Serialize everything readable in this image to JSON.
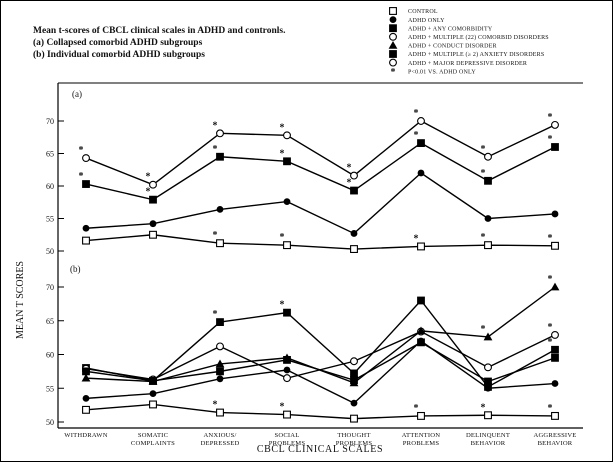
{
  "title": {
    "line1": "Mean t-scores of CBCL clinical scales in ADHD and contronls.",
    "line2": "(a) Collapsed comorbid ADHD subgroups",
    "line3": "(b) Individual comorbid ADHD subgroups"
  },
  "legend": [
    {
      "label": "CONTROL",
      "marker": "square-open"
    },
    {
      "label": "ADHD ONLY",
      "marker": "circle-filled"
    },
    {
      "label": "ADHD + ANY COMORBIDITY",
      "marker": "square-filled"
    },
    {
      "label": "ADHD + MULTIPLE (22) COMORBID DISORDERS",
      "marker": "circle-open"
    },
    {
      "label": "ADHD + CONDUCT DISORDER",
      "marker": "triangle-filled"
    },
    {
      "label": "ADHD + MULTIPLE (≥ 2) ANXIETY DISORDERS",
      "marker": "square-filled"
    },
    {
      "label": "ADHD + MAJOR DEPRESSIVE DISORDER",
      "marker": "circle-open"
    },
    {
      "label": "P<0.01 VS. ADHD ONLY",
      "marker": "star"
    }
  ],
  "chart_data": [
    {
      "type": "line",
      "panel": "(a)",
      "ylabel": "MEAN T SCORES",
      "xlabel": "CBCL CLINICAL SCALES",
      "categories": [
        "WITHDRAWN",
        "SOMATIC COMPLAINTS",
        "ANXIOUS/ DEPRESSED",
        "SOCIAL PROBLEMS",
        "THOUGHT PROBLEMS",
        "ATTENTION PROBLEMS",
        "DELINQUENT BEHAVIOR",
        "AGGRESSIVE BEHAVIOR"
      ],
      "yticks": [
        50,
        55,
        60,
        65,
        70
      ],
      "ylim": [
        50,
        71
      ],
      "series": [
        {
          "marker": "square-open",
          "values": [
            51.6,
            52.5,
            51.2,
            50.9,
            50.3,
            50.7,
            50.9,
            50.8
          ],
          "stars": [
            false,
            false,
            true,
            true,
            false,
            true,
            true,
            true
          ]
        },
        {
          "marker": "circle-filled",
          "values": [
            53.5,
            54.2,
            56.4,
            57.6,
            52.7,
            62.0,
            55.0,
            55.7
          ],
          "stars": [
            false,
            false,
            false,
            false,
            false,
            false,
            false,
            false
          ]
        },
        {
          "marker": "square-filled",
          "values": [
            60.3,
            57.9,
            64.5,
            63.8,
            59.3,
            66.6,
            60.8,
            66.0
          ],
          "stars": [
            true,
            true,
            true,
            true,
            true,
            true,
            true,
            true
          ]
        },
        {
          "marker": "circle-open",
          "values": [
            64.3,
            60.2,
            68.1,
            67.8,
            61.6,
            70.0,
            64.5,
            69.4
          ],
          "stars": [
            true,
            true,
            true,
            true,
            true,
            true,
            true,
            true
          ]
        }
      ]
    },
    {
      "type": "line",
      "panel": "(b)",
      "categories": [
        "WITHDRAWN",
        "SOMATIC COMPLAINTS",
        "ANXIOUS/ DEPRESSED",
        "SOCIAL PROBLEMS",
        "THOUGHT PROBLEMS",
        "ATTENTION PROBLEMS",
        "DELINQUENT BEHAVIOR",
        "AGGRESSIVE BEHAVIOR"
      ],
      "yticks": [
        50,
        55,
        60,
        65,
        70
      ],
      "ylim": [
        50,
        71
      ],
      "series": [
        {
          "marker": "square-open",
          "values": [
            51.8,
            52.6,
            51.4,
            51.1,
            50.5,
            50.9,
            51.0,
            50.9
          ],
          "stars": [
            false,
            false,
            true,
            true,
            false,
            true,
            true,
            true
          ]
        },
        {
          "marker": "circle-filled",
          "values": [
            53.5,
            54.2,
            56.4,
            57.7,
            52.8,
            62.0,
            55.0,
            55.7
          ],
          "stars": [
            false,
            false,
            false,
            false,
            false,
            false,
            false,
            false
          ]
        },
        {
          "marker": "square-filled",
          "values": [
            58.0,
            56.1,
            64.8,
            66.2,
            57.2,
            68.0,
            55.2,
            60.7
          ],
          "stars": [
            false,
            false,
            true,
            true,
            false,
            false,
            false,
            true
          ]
        },
        {
          "marker": "circle-open",
          "values": [
            57.9,
            56.3,
            61.2,
            56.5,
            59.0,
            63.4,
            58.1,
            62.9
          ],
          "stars": [
            false,
            false,
            false,
            false,
            false,
            false,
            false,
            true
          ]
        },
        {
          "marker": "triangle-filled",
          "values": [
            56.5,
            56.0,
            58.6,
            59.5,
            55.8,
            63.5,
            62.6,
            70.0
          ],
          "stars": [
            false,
            false,
            false,
            false,
            false,
            false,
            true,
            true
          ]
        },
        {
          "marker": "square-filled",
          "values": [
            57.5,
            56.1,
            57.5,
            59.2,
            56.2,
            61.8,
            56.0,
            59.5
          ],
          "stars": [
            false,
            false,
            false,
            false,
            false,
            false,
            false,
            false
          ]
        }
      ]
    }
  ]
}
